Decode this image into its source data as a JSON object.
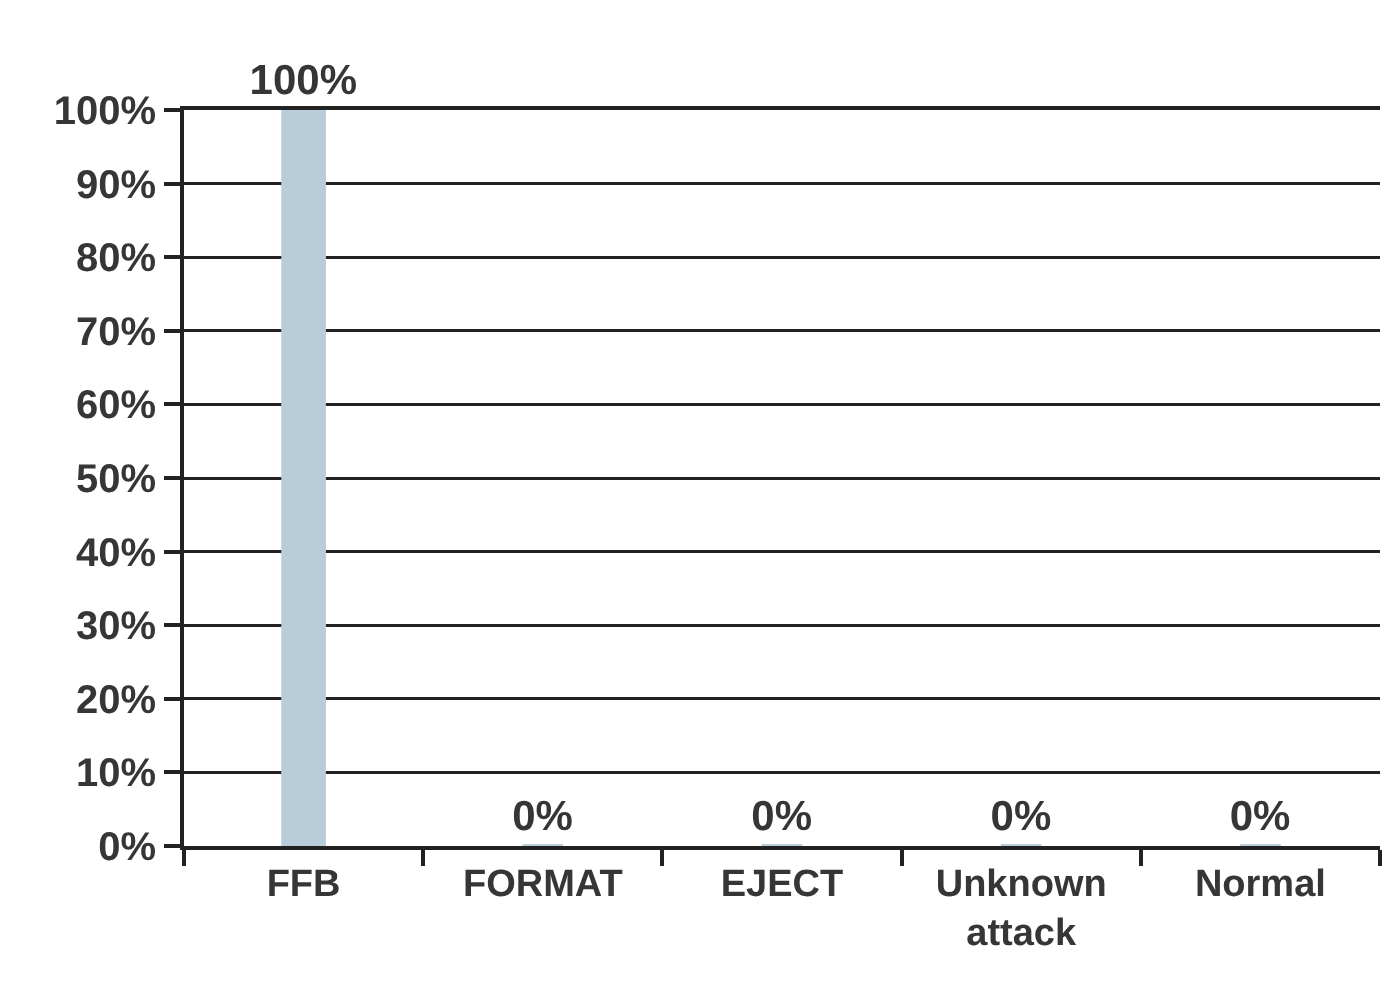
{
  "chart_data": {
    "type": "bar",
    "categories": [
      "FFB",
      "FORMAT",
      "EJECT",
      "Unknown attack",
      "Normal"
    ],
    "values": [
      100,
      0,
      0,
      0,
      0
    ],
    "color": "#b9cdd8",
    "value_labels": [
      "100%",
      "0%",
      "0%",
      "0%",
      "0%"
    ],
    "ylim": [
      0,
      100
    ],
    "yticks": [
      {
        "value": 0,
        "label": "0%"
      },
      {
        "value": 10,
        "label": "10%"
      },
      {
        "value": 20,
        "label": "20%"
      },
      {
        "value": 30,
        "label": "30%"
      },
      {
        "value": 40,
        "label": "40%"
      },
      {
        "value": 50,
        "label": "50%"
      },
      {
        "value": 60,
        "label": "60%"
      },
      {
        "value": 70,
        "label": "70%"
      },
      {
        "value": 80,
        "label": "80%"
      },
      {
        "value": 90,
        "label": "90%"
      },
      {
        "value": 100,
        "label": "100%"
      }
    ],
    "grid": "y"
  }
}
